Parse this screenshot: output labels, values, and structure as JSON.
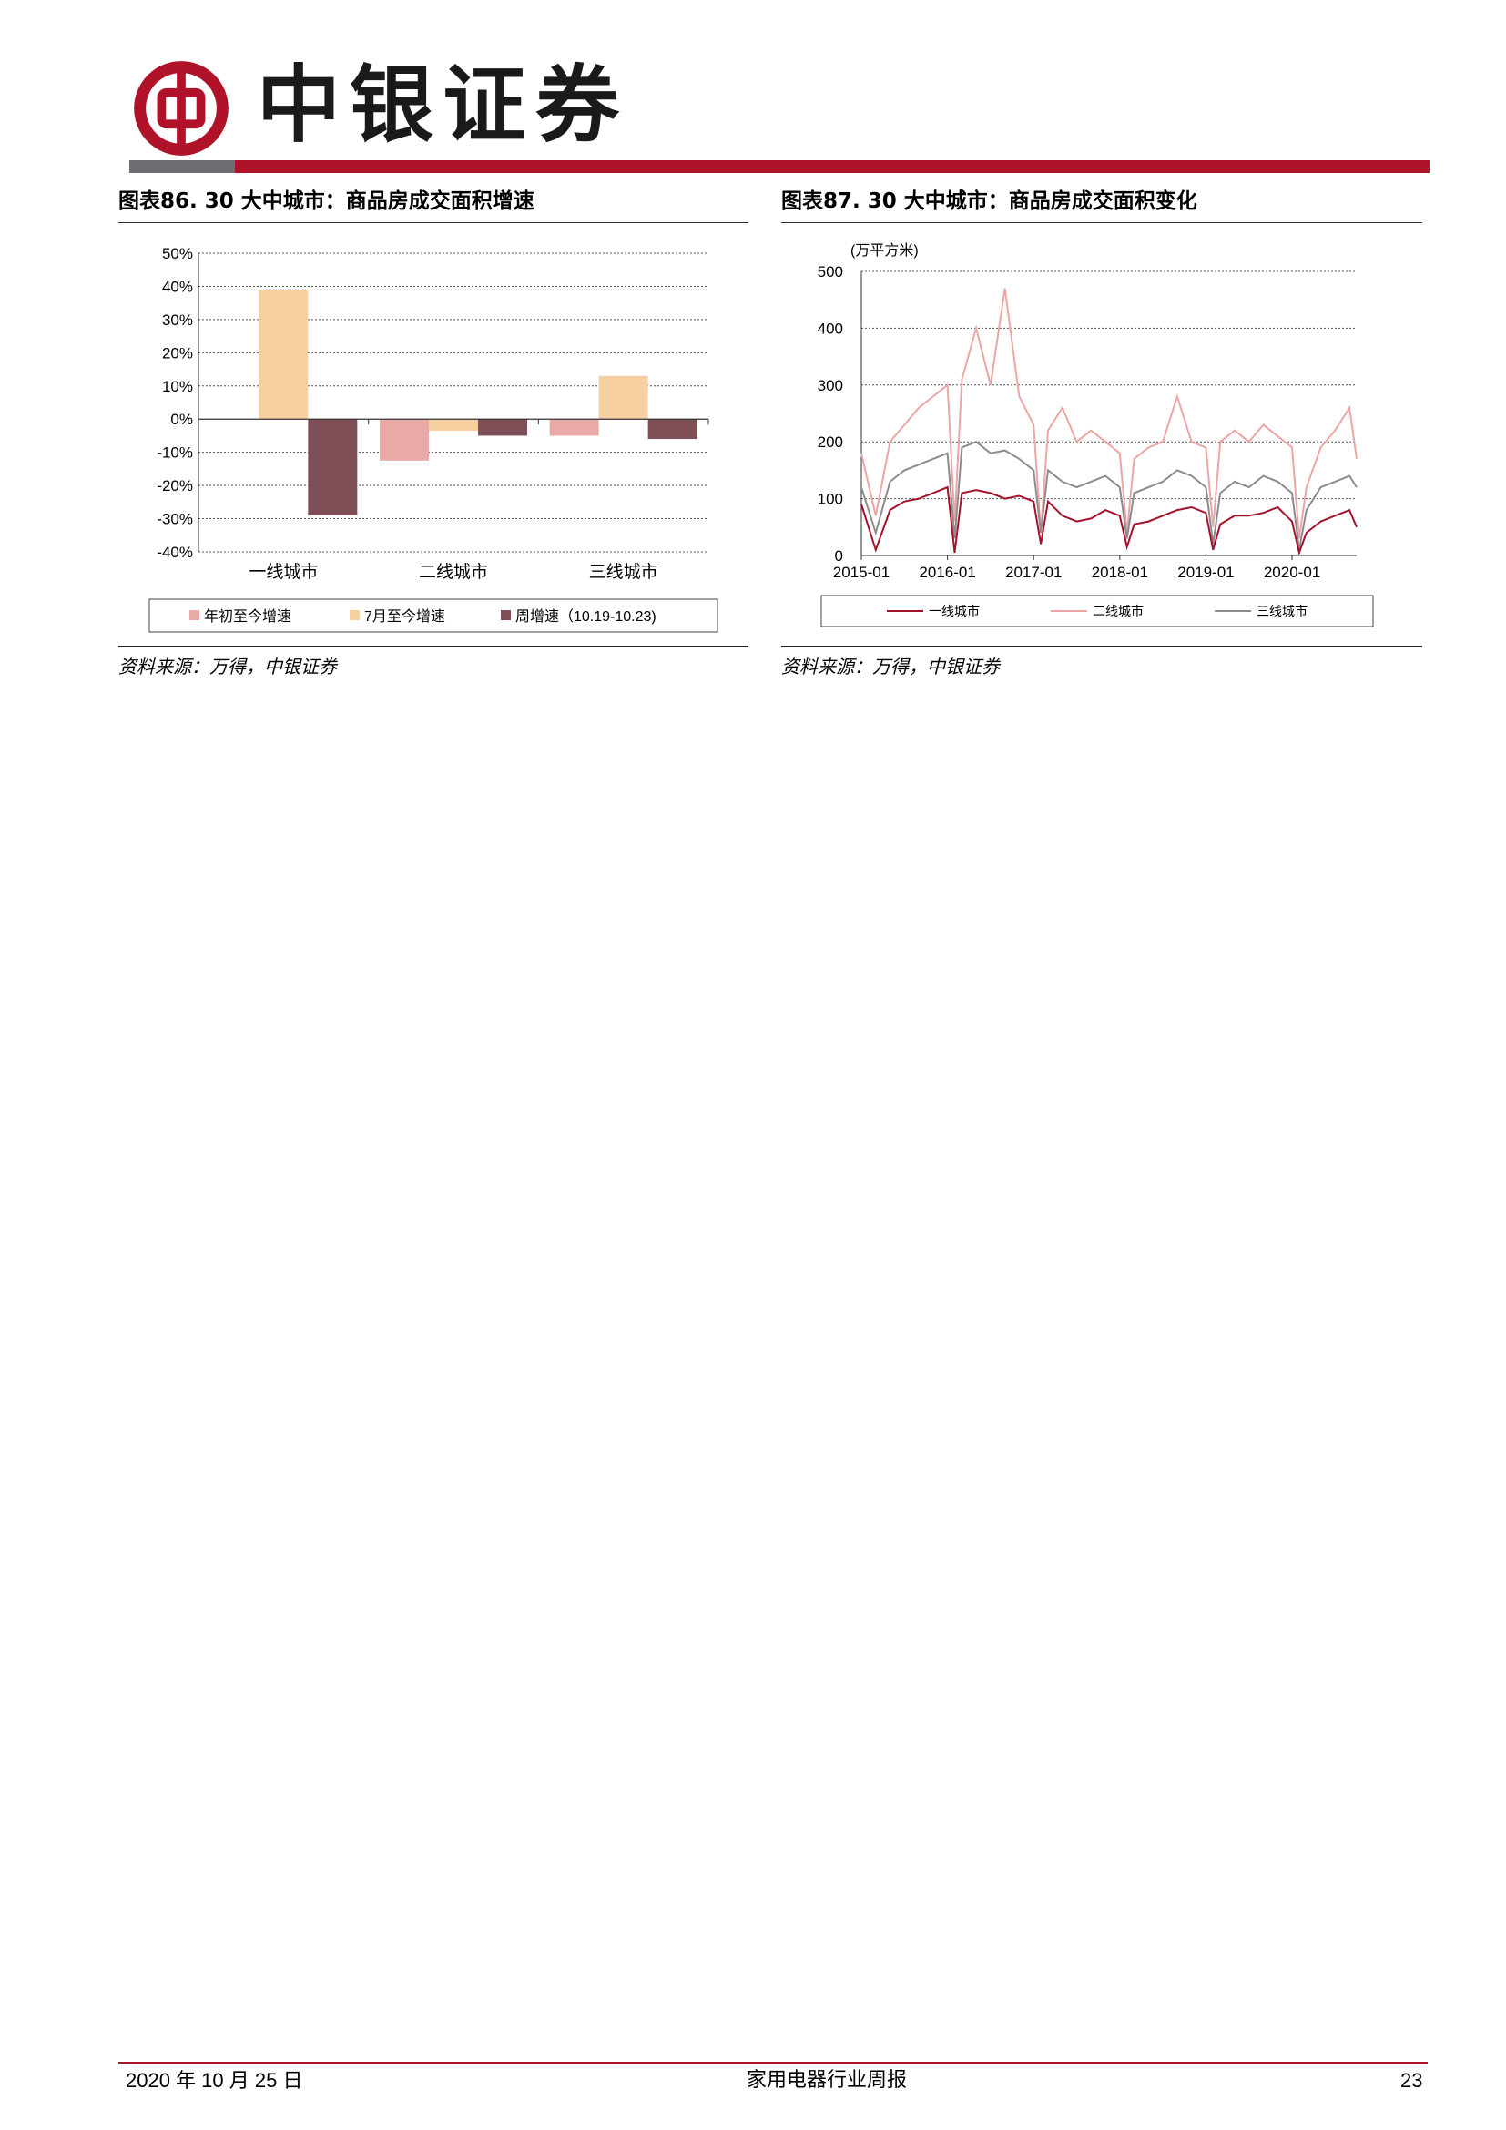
{
  "header": {
    "brand_name": "中银证券",
    "colors": {
      "brand_red": "#b0122a",
      "brand_gray": "#6d6e71"
    },
    "logo_icon": "bank-of-china-logo-icon"
  },
  "figure1": {
    "title": "图表86. 30 大中城市：商品房成交面积增速",
    "source": "资料来源：万得，中银证券",
    "chart_data": {
      "type": "bar",
      "categories": [
        "一线城市",
        "二线城市",
        "三线城市"
      ],
      "series": [
        {
          "name": "年初至今增速",
          "color": "#e8a9a7",
          "values": [
            0,
            -12.5,
            -5
          ]
        },
        {
          "name": "7月至今增速",
          "color": "#f7d0a1",
          "values": [
            39,
            -3.5,
            13
          ]
        },
        {
          "name": "周增速（10.19-10.23)",
          "color": "#7f4f58",
          "values": [
            -29,
            -5,
            -6
          ]
        }
      ],
      "ylim": [
        -40,
        50
      ],
      "yticks": [
        50,
        40,
        30,
        20,
        10,
        0,
        -10,
        -20,
        -30,
        -40
      ],
      "ytick_labels": [
        "50%",
        "40%",
        "30%",
        "20%",
        "10%",
        "0%",
        "-10%",
        "-20%",
        "-30%",
        "-40%"
      ],
      "grid": true,
      "legend_position": "bottom"
    }
  },
  "figure2": {
    "title": "图表87. 30 大中城市：商品房成交面积变化",
    "source": "资料来源：万得，中银证券",
    "chart_data": {
      "type": "line",
      "unit_label": "(万平方米)",
      "ylim": [
        0,
        500
      ],
      "yticks": [
        0,
        100,
        200,
        300,
        400,
        500
      ],
      "ytick_labels": [
        "0",
        "100",
        "200",
        "300",
        "400",
        "500"
      ],
      "xticks": [
        "2015-01",
        "2016-01",
        "2017-01",
        "2018-01",
        "2019-01",
        "2020-01"
      ],
      "xlim": [
        "2015-01",
        "2020-10"
      ],
      "grid": true,
      "legend_position": "bottom",
      "series": [
        {
          "name": "一线城市",
          "color": "#a5122b",
          "x": [
            "2015-01",
            "2015-03",
            "2015-05",
            "2015-07",
            "2015-09",
            "2015-11",
            "2016-01",
            "2016-02",
            "2016-03",
            "2016-05",
            "2016-07",
            "2016-09",
            "2016-11",
            "2017-01",
            "2017-02",
            "2017-03",
            "2017-05",
            "2017-07",
            "2017-09",
            "2017-11",
            "2018-01",
            "2018-02",
            "2018-03",
            "2018-05",
            "2018-07",
            "2018-09",
            "2018-11",
            "2019-01",
            "2019-02",
            "2019-03",
            "2019-05",
            "2019-07",
            "2019-09",
            "2019-11",
            "2020-01",
            "2020-02",
            "2020-03",
            "2020-05",
            "2020-07",
            "2020-09",
            "2020-10"
          ],
          "values": [
            90,
            10,
            80,
            95,
            100,
            110,
            120,
            5,
            110,
            115,
            110,
            100,
            105,
            95,
            20,
            95,
            70,
            60,
            65,
            80,
            70,
            15,
            55,
            60,
            70,
            80,
            85,
            75,
            10,
            55,
            70,
            70,
            75,
            85,
            60,
            5,
            40,
            60,
            70,
            80,
            50
          ]
        },
        {
          "name": "二线城市",
          "color": "#eaa7a6",
          "x": [
            "2015-01",
            "2015-03",
            "2015-05",
            "2015-07",
            "2015-09",
            "2015-11",
            "2016-01",
            "2016-02",
            "2016-03",
            "2016-05",
            "2016-07",
            "2016-09",
            "2016-11",
            "2017-01",
            "2017-02",
            "2017-03",
            "2017-05",
            "2017-07",
            "2017-09",
            "2017-11",
            "2018-01",
            "2018-02",
            "2018-03",
            "2018-05",
            "2018-07",
            "2018-09",
            "2018-11",
            "2019-01",
            "2019-02",
            "2019-03",
            "2019-05",
            "2019-07",
            "2019-09",
            "2019-11",
            "2020-01",
            "2020-02",
            "2020-03",
            "2020-05",
            "2020-07",
            "2020-09",
            "2020-10"
          ],
          "values": [
            180,
            70,
            200,
            230,
            260,
            280,
            300,
            60,
            310,
            400,
            300,
            470,
            280,
            230,
            40,
            220,
            260,
            200,
            220,
            200,
            180,
            40,
            170,
            190,
            200,
            280,
            200,
            190,
            50,
            200,
            220,
            200,
            230,
            210,
            190,
            30,
            120,
            190,
            220,
            260,
            170
          ]
        },
        {
          "name": "三线城市",
          "color": "#8c8c8c",
          "x": [
            "2015-01",
            "2015-03",
            "2015-05",
            "2015-07",
            "2015-09",
            "2015-11",
            "2016-01",
            "2016-02",
            "2016-03",
            "2016-05",
            "2016-07",
            "2016-09",
            "2016-11",
            "2017-01",
            "2017-02",
            "2017-03",
            "2017-05",
            "2017-07",
            "2017-09",
            "2017-11",
            "2018-01",
            "2018-02",
            "2018-03",
            "2018-05",
            "2018-07",
            "2018-09",
            "2018-11",
            "2019-01",
            "2019-02",
            "2019-03",
            "2019-05",
            "2019-07",
            "2019-09",
            "2019-11",
            "2020-01",
            "2020-02",
            "2020-03",
            "2020-05",
            "2020-07",
            "2020-09",
            "2020-10"
          ],
          "values": [
            120,
            40,
            130,
            150,
            160,
            170,
            180,
            30,
            190,
            200,
            180,
            185,
            170,
            150,
            40,
            150,
            130,
            120,
            130,
            140,
            120,
            30,
            110,
            120,
            130,
            150,
            140,
            120,
            20,
            110,
            130,
            120,
            140,
            130,
            110,
            10,
            80,
            120,
            130,
            140,
            120
          ]
        }
      ]
    }
  },
  "footer": {
    "date": "2020 年 10 月 25 日",
    "report_name": "家用电器行业周报",
    "page_number": "23"
  }
}
